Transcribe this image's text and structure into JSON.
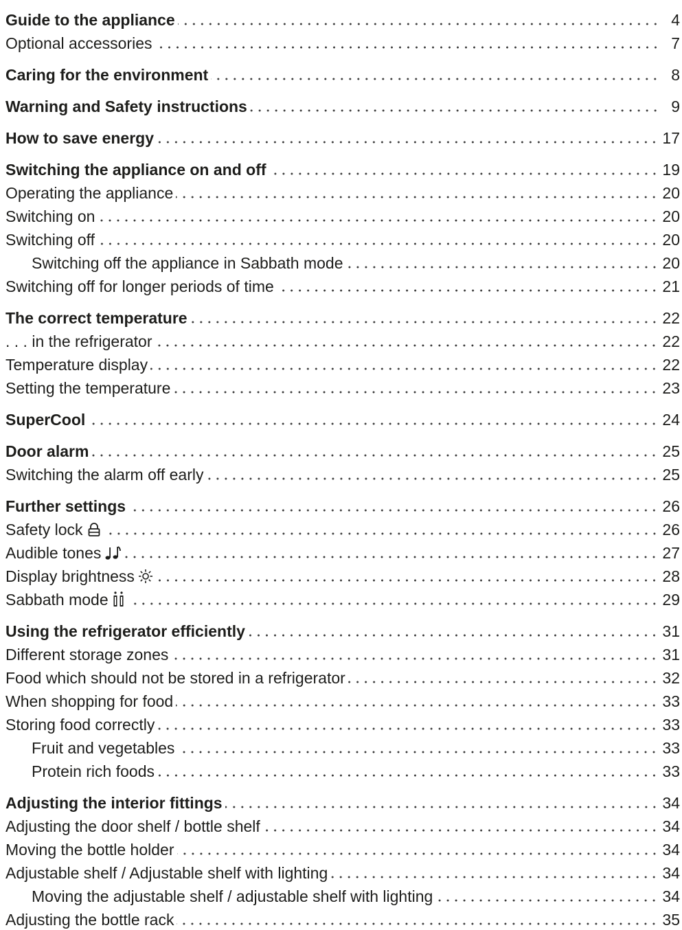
{
  "toc": [
    {
      "title": "Guide to the appliance",
      "page": "4",
      "level": 1
    },
    {
      "title": "Optional accessories",
      "page": "7",
      "level": 2
    },
    {
      "title": "Caring for the environment",
      "page": "8",
      "level": 1
    },
    {
      "title": "Warning and Safety instructions",
      "page": "9",
      "level": 1
    },
    {
      "title": "How to save energy",
      "page": "17",
      "level": 1
    },
    {
      "title": "Switching the appliance on and off",
      "page": "19",
      "level": 1
    },
    {
      "title": "Operating the appliance",
      "page": "20",
      "level": 2
    },
    {
      "title": "Switching on",
      "page": "20",
      "level": 2
    },
    {
      "title": "Switching off",
      "page": "20",
      "level": 2
    },
    {
      "title": "Switching off the appliance in Sabbath mode",
      "page": "20",
      "level": 3
    },
    {
      "title": "Switching off for longer periods of time",
      "page": "21",
      "level": 2
    },
    {
      "title": "The correct temperature",
      "page": "22",
      "level": 1
    },
    {
      "title": ". . . in the refrigerator",
      "page": "22",
      "level": 2
    },
    {
      "title": "Temperature display",
      "page": "22",
      "level": 2
    },
    {
      "title": "Setting the temperature",
      "page": "23",
      "level": 2
    },
    {
      "title": "SuperCool",
      "page": "24",
      "level": 1
    },
    {
      "title": "Door alarm",
      "page": "25",
      "level": 1
    },
    {
      "title": "Switching the alarm off early",
      "page": "25",
      "level": 2
    },
    {
      "title": "Further settings",
      "page": "26",
      "level": 1
    },
    {
      "title": "Safety lock",
      "page": "26",
      "level": 2,
      "icon": "lock-icon"
    },
    {
      "title": "Audible tones",
      "page": "27",
      "level": 2,
      "icon": "music-notes-icon"
    },
    {
      "title": "Display brightness",
      "page": "28",
      "level": 2,
      "icon": "sun-icon"
    },
    {
      "title": "Sabbath mode",
      "page": "29",
      "level": 2,
      "icon": "candles-icon"
    },
    {
      "title": "Using the refrigerator efficiently",
      "page": "31",
      "level": 1
    },
    {
      "title": "Different storage zones",
      "page": "31",
      "level": 2
    },
    {
      "title": "Food which should not be stored in a refrigerator",
      "page": "32",
      "level": 2
    },
    {
      "title": "When shopping for food",
      "page": "33",
      "level": 2
    },
    {
      "title": "Storing food correctly",
      "page": "33",
      "level": 2
    },
    {
      "title": "Fruit and vegetables",
      "page": "33",
      "level": 3
    },
    {
      "title": "Protein rich foods",
      "page": "33",
      "level": 3
    },
    {
      "title": "Adjusting the interior fittings",
      "page": "34",
      "level": 1
    },
    {
      "title": "Adjusting the door shelf / bottle shelf",
      "page": "34",
      "level": 2
    },
    {
      "title": "Moving the bottle holder",
      "page": "34",
      "level": 2
    },
    {
      "title": "Adjustable shelf / Adjustable shelf with lighting",
      "page": "34",
      "level": 2
    },
    {
      "title": "Moving the adjustable shelf / adjustable shelf with lighting",
      "page": "34",
      "level": 3
    },
    {
      "title": "Adjusting the bottle rack",
      "page": "35",
      "level": 2
    }
  ]
}
